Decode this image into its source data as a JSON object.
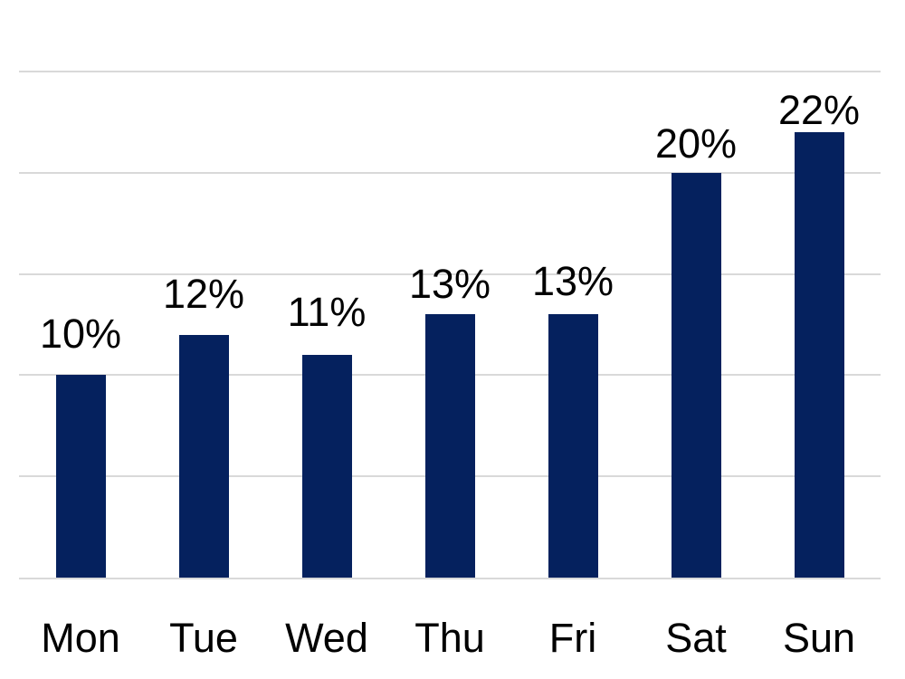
{
  "chart_data": {
    "type": "bar",
    "title": "",
    "categories": [
      "Mon",
      "Tue",
      "Wed",
      "Thu",
      "Fri",
      "Sat",
      "Sun"
    ],
    "values": [
      10,
      12,
      11,
      13,
      13,
      20,
      22
    ],
    "data_labels": [
      "10%",
      "12%",
      "11%",
      "13%",
      "13%",
      "20%",
      "22%"
    ],
    "xlabel": "",
    "ylabel": "",
    "ylim": [
      0,
      25
    ],
    "gridline_interval": 5,
    "grid": true,
    "legend": false,
    "y_axis_labels_visible": false,
    "colors": {
      "bar": "#05215e",
      "gridline": "#d9d9d9",
      "axis_line": "#d9d9d9",
      "label_text": "#000000",
      "background": "#ffffff"
    }
  }
}
